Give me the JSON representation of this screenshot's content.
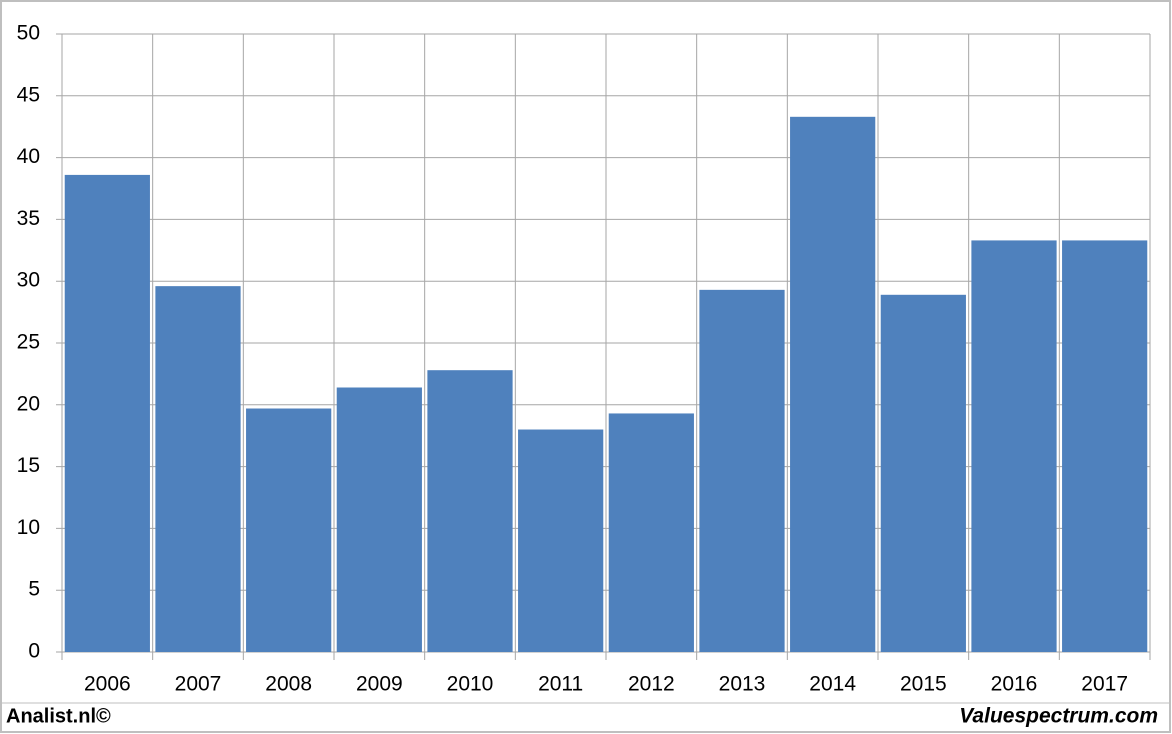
{
  "chart_data": {
    "type": "bar",
    "categories": [
      "2006",
      "2007",
      "2008",
      "2009",
      "2010",
      "2011",
      "2012",
      "2013",
      "2014",
      "2015",
      "2016",
      "2017"
    ],
    "values": [
      38.6,
      29.6,
      19.7,
      21.4,
      22.8,
      18.0,
      19.3,
      29.3,
      43.3,
      28.9,
      33.3,
      33.3
    ],
    "color": "#4f81bd",
    "ylim": [
      0,
      50
    ],
    "yticks": [
      0,
      5,
      10,
      15,
      20,
      25,
      30,
      35,
      40,
      45,
      50
    ],
    "grid": true,
    "credit_left": "Analist.nl©",
    "credit_right": "Valuespectrum.com"
  }
}
